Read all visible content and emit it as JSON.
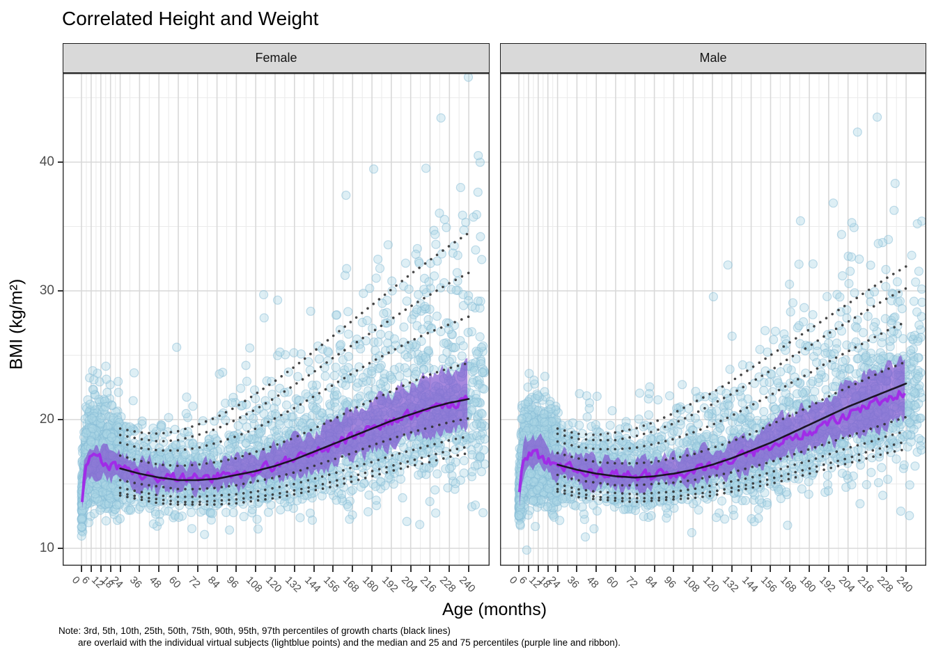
{
  "chart_data": {
    "type": "scatter",
    "title": "Correlated Height and Weight",
    "xlabel": "Age (months)",
    "ylabel": "BMI (kg/m²)",
    "x_ticks": [
      0,
      6,
      12,
      18,
      24,
      36,
      48,
      60,
      72,
      84,
      96,
      108,
      120,
      132,
      144,
      156,
      168,
      180,
      192,
      204,
      216,
      228,
      240
    ],
    "y_ticks": [
      10,
      20,
      30,
      40
    ],
    "y_minor_ticks": [
      15,
      25,
      35,
      45
    ],
    "x_range": [
      -12,
      252
    ],
    "y_range": [
      8.6,
      46.9
    ],
    "grid": true,
    "legend": "none",
    "percentile_labels": [
      "3rd",
      "5th",
      "10th",
      "25th",
      "50th",
      "75th",
      "90th",
      "95th",
      "97th"
    ],
    "growth_ages_months": [
      24,
      36,
      48,
      60,
      72,
      84,
      96,
      108,
      120,
      132,
      144,
      156,
      168,
      180,
      192,
      204,
      216,
      228,
      240
    ],
    "facets": [
      {
        "name": "Female",
        "growth_percentiles": {
          "p3": [
            14.1,
            13.8,
            13.5,
            13.4,
            13.4,
            13.4,
            13.5,
            13.7,
            13.9,
            14.2,
            14.5,
            14.8,
            15.2,
            15.6,
            16.0,
            16.4,
            16.7,
            17.1,
            17.4
          ],
          "p5": [
            14.3,
            14.0,
            13.8,
            13.6,
            13.6,
            13.7,
            13.8,
            14.0,
            14.2,
            14.5,
            14.8,
            15.2,
            15.6,
            16.0,
            16.4,
            16.8,
            17.2,
            17.6,
            17.9
          ],
          "p10": [
            14.7,
            14.4,
            14.1,
            14.0,
            14.0,
            14.1,
            14.2,
            14.4,
            14.7,
            15.0,
            15.4,
            15.8,
            16.3,
            16.7,
            17.2,
            17.6,
            18.0,
            18.4,
            18.7
          ],
          "p25": [
            15.3,
            15.0,
            14.8,
            14.6,
            14.6,
            14.7,
            14.9,
            15.2,
            15.5,
            15.9,
            16.4,
            16.9,
            17.4,
            18.0,
            18.5,
            19.0,
            19.4,
            19.8,
            20.1
          ],
          "p50": [
            16.2,
            15.8,
            15.5,
            15.3,
            15.3,
            15.4,
            15.7,
            16.0,
            16.4,
            16.9,
            17.5,
            18.1,
            18.7,
            19.3,
            19.9,
            20.4,
            20.9,
            21.3,
            21.6
          ],
          "p75": [
            17.2,
            16.8,
            16.5,
            16.4,
            16.5,
            16.7,
            17.0,
            17.5,
            18.0,
            18.6,
            19.3,
            20.0,
            20.8,
            21.5,
            22.2,
            22.9,
            23.5,
            24.0,
            24.4
          ],
          "p90": [
            18.2,
            17.8,
            17.6,
            17.6,
            17.8,
            18.2,
            18.7,
            19.3,
            20.1,
            20.9,
            21.8,
            22.7,
            23.6,
            24.5,
            25.3,
            26.1,
            26.8,
            27.4,
            28.0
          ],
          "p95": [
            18.8,
            18.5,
            18.3,
            18.4,
            18.8,
            19.3,
            20.0,
            20.8,
            21.7,
            22.7,
            23.7,
            24.8,
            25.8,
            26.8,
            27.8,
            28.8,
            29.7,
            30.6,
            31.4
          ],
          "p97": [
            19.3,
            19.0,
            18.9,
            19.1,
            19.6,
            20.2,
            21.0,
            22.0,
            23.0,
            24.1,
            25.3,
            26.5,
            27.7,
            28.9,
            30.1,
            31.3,
            32.4,
            33.5,
            34.5
          ]
        },
        "sim_ages_months": [
          0,
          2,
          4,
          6,
          9,
          12,
          18,
          24,
          36,
          48,
          60,
          72,
          84,
          96,
          108,
          120,
          132,
          144,
          156,
          168,
          180,
          192,
          204,
          216,
          228,
          240
        ],
        "sim_median": [
          13.2,
          15.8,
          16.8,
          17.1,
          17.0,
          16.8,
          16.5,
          16.3,
          15.9,
          15.6,
          15.4,
          15.4,
          15.5,
          15.7,
          16.0,
          16.4,
          16.9,
          17.4,
          18.0,
          18.6,
          19.2,
          19.8,
          20.3,
          20.8,
          21.2,
          21.6
        ],
        "sim_p25": [
          12.4,
          14.8,
          15.7,
          16.0,
          15.9,
          15.7,
          15.4,
          15.2,
          14.9,
          14.6,
          14.5,
          14.5,
          14.6,
          14.8,
          15.0,
          15.3,
          15.6,
          16.0,
          16.5,
          17.0,
          17.5,
          18.0,
          18.4,
          18.8,
          19.2,
          19.5
        ],
        "sim_p75": [
          14.0,
          16.9,
          17.9,
          18.3,
          18.2,
          18.0,
          17.6,
          17.4,
          16.9,
          16.6,
          16.5,
          16.5,
          16.7,
          17.0,
          17.4,
          17.9,
          18.5,
          19.2,
          19.9,
          20.7,
          21.4,
          22.1,
          22.8,
          23.4,
          23.9,
          24.3
        ],
        "points": {
          "n": 3400,
          "young_fraction": 0.36,
          "age_max": 250,
          "bmi_clamp": [
            8.6,
            46.6
          ]
        }
      },
      {
        "name": "Male",
        "growth_percentiles": {
          "p3": [
            14.4,
            14.0,
            13.8,
            13.7,
            13.6,
            13.7,
            13.8,
            13.9,
            14.1,
            14.4,
            14.7,
            15.0,
            15.4,
            15.8,
            16.2,
            16.6,
            17.0,
            17.4,
            17.7
          ],
          "p5": [
            14.6,
            14.3,
            14.0,
            13.9,
            13.9,
            13.9,
            14.0,
            14.2,
            14.4,
            14.7,
            15.0,
            15.4,
            15.8,
            16.2,
            16.6,
            17.0,
            17.5,
            17.9,
            18.3
          ],
          "p10": [
            15.0,
            14.6,
            14.4,
            14.3,
            14.2,
            14.3,
            14.4,
            14.6,
            14.9,
            15.2,
            15.5,
            15.9,
            16.4,
            16.8,
            17.3,
            17.8,
            18.2,
            18.7,
            19.1
          ],
          "p25": [
            15.7,
            15.3,
            15.1,
            14.9,
            14.9,
            15.0,
            15.1,
            15.3,
            15.6,
            15.9,
            16.3,
            16.7,
            17.2,
            17.7,
            18.2,
            18.7,
            19.2,
            19.7,
            20.2
          ],
          "p50": [
            16.5,
            16.1,
            15.8,
            15.6,
            15.5,
            15.6,
            15.8,
            16.1,
            16.5,
            17.0,
            17.6,
            18.2,
            18.9,
            19.6,
            20.3,
            21.0,
            21.6,
            22.2,
            22.8
          ],
          "p75": [
            17.4,
            17.0,
            16.7,
            16.6,
            16.6,
            16.7,
            17.0,
            17.3,
            17.8,
            18.3,
            18.9,
            19.6,
            20.3,
            21.0,
            21.8,
            22.5,
            23.2,
            23.9,
            24.5
          ],
          "p90": [
            18.3,
            17.9,
            17.7,
            17.7,
            17.8,
            18.1,
            18.5,
            19.0,
            19.6,
            20.3,
            21.1,
            21.9,
            22.8,
            23.6,
            24.5,
            25.3,
            26.1,
            26.9,
            27.6
          ],
          "p95": [
            18.9,
            18.5,
            18.4,
            18.4,
            18.7,
            19.1,
            19.7,
            20.4,
            21.2,
            22.0,
            22.9,
            23.8,
            24.8,
            25.7,
            26.7,
            27.6,
            28.5,
            29.4,
            30.2
          ],
          "p97": [
            19.3,
            18.9,
            18.8,
            19.0,
            19.3,
            19.8,
            20.5,
            21.3,
            22.1,
            23.0,
            24.0,
            25.0,
            26.0,
            27.0,
            28.0,
            29.0,
            30.0,
            31.0,
            31.9
          ]
        },
        "sim_ages_months": [
          0,
          2,
          4,
          6,
          9,
          12,
          18,
          24,
          36,
          48,
          60,
          72,
          84,
          96,
          108,
          120,
          132,
          144,
          156,
          168,
          180,
          192,
          204,
          216,
          228,
          240
        ],
        "sim_median": [
          13.5,
          16.1,
          17.1,
          17.4,
          17.3,
          17.1,
          16.8,
          16.6,
          16.2,
          15.9,
          15.7,
          15.6,
          15.6,
          15.8,
          16.0,
          16.4,
          16.8,
          17.3,
          17.9,
          18.5,
          19.1,
          19.7,
          20.4,
          21.0,
          21.6,
          22.2
        ],
        "sim_p25": [
          12.7,
          15.1,
          16.0,
          16.3,
          16.2,
          16.0,
          15.7,
          15.5,
          15.2,
          14.9,
          14.8,
          14.7,
          14.8,
          14.9,
          15.1,
          15.4,
          15.7,
          16.1,
          16.6,
          17.1,
          17.6,
          18.1,
          18.7,
          19.2,
          19.7,
          20.2
        ],
        "sim_p75": [
          14.3,
          17.2,
          18.2,
          18.6,
          18.5,
          18.3,
          17.9,
          17.7,
          17.2,
          16.9,
          16.7,
          16.7,
          16.8,
          17.1,
          17.4,
          17.8,
          18.3,
          18.9,
          19.6,
          20.3,
          21.1,
          21.9,
          22.7,
          23.4,
          24.0,
          24.6
        ],
        "points": {
          "n": 3400,
          "young_fraction": 0.36,
          "age_max": 250,
          "bmi_clamp": [
            8.6,
            43.5
          ]
        }
      }
    ]
  },
  "note": {
    "line1": "Note: 3rd, 5th, 10th, 25th, 50th, 75th, 90th, 95th, 97th percentiles of growth charts (black lines)",
    "line2": "are overlaid with the individual virtual subjects (lightblue points) and the median and 25 and 75 percentiles (purple line and ribbon)."
  },
  "colors": {
    "points": "#ADD8E6",
    "point_stroke": "#85BCD6",
    "ribbon": "#8256D0",
    "median_line": "#A128E8",
    "growth_line": "#15101A",
    "percentile_dots": "#2D2D2D",
    "strip_bg": "#D9D9D9",
    "strip_border": "#1A1A1A",
    "panel_border": "#2E2E2E",
    "grid_major": "#D8D8D8",
    "grid_minor": "#EBEBEB",
    "axis_text": "#4D4D4D",
    "tick_mark": "#333333",
    "title_text": "#000000"
  }
}
